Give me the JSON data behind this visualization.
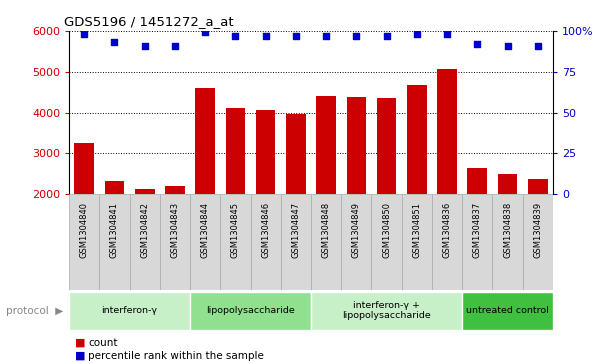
{
  "title": "GDS5196 / 1451272_a_at",
  "samples": [
    "GSM1304840",
    "GSM1304841",
    "GSM1304842",
    "GSM1304843",
    "GSM1304844",
    "GSM1304845",
    "GSM1304846",
    "GSM1304847",
    "GSM1304848",
    "GSM1304849",
    "GSM1304850",
    "GSM1304851",
    "GSM1304836",
    "GSM1304837",
    "GSM1304838",
    "GSM1304839"
  ],
  "counts": [
    3250,
    2330,
    2130,
    2210,
    4600,
    4120,
    4060,
    3960,
    4400,
    4380,
    4350,
    4680,
    5070,
    2650,
    2490,
    2380
  ],
  "percentile_ranks": [
    98,
    93,
    91,
    91,
    99,
    97,
    97,
    97,
    97,
    97,
    97,
    98,
    98,
    92,
    91,
    91
  ],
  "groups": [
    {
      "label": "interferon-γ",
      "start": 0,
      "end": 3,
      "color": "#c8f0c8"
    },
    {
      "label": "lipopolysaccharide",
      "start": 4,
      "end": 7,
      "color": "#90e090"
    },
    {
      "label": "interferon-γ +\nlipopolysaccharide",
      "start": 8,
      "end": 12,
      "color": "#c8f0c8"
    },
    {
      "label": "untreated control",
      "start": 13,
      "end": 15,
      "color": "#40c040"
    }
  ],
  "bar_color": "#cc0000",
  "dot_color": "#0000cc",
  "ylim_left": [
    2000,
    6000
  ],
  "ylim_right": [
    0,
    100
  ],
  "yticks_left": [
    2000,
    3000,
    4000,
    5000,
    6000
  ],
  "yticks_right": [
    0,
    25,
    50,
    75,
    100
  ],
  "ytick_labels_right": [
    "0",
    "25",
    "50",
    "75",
    "100%"
  ],
  "grid_levels": [
    3000,
    4000,
    5000
  ],
  "background_color": "#ffffff",
  "legend_count_label": "count",
  "legend_pct_label": "percentile rank within the sample",
  "xlabel_bg": "#d8d8d8",
  "xlabel_border": "#aaaaaa"
}
